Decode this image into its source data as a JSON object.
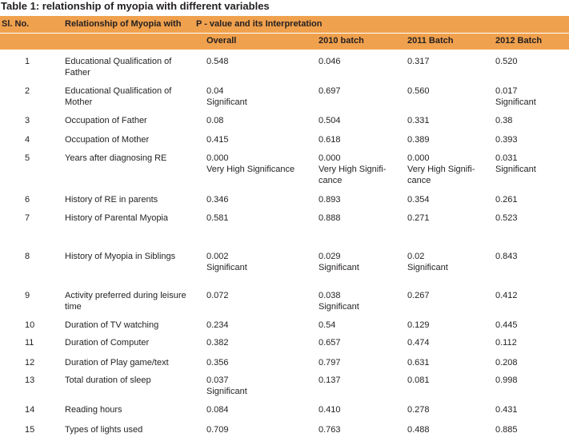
{
  "title": "Table 1: relationship of myopia with different variables",
  "headers": {
    "sl_no": "Sl. No.",
    "relationship": "Relationship of Myopia with",
    "p_value": "P - value and its Interpretation",
    "overall": "Overall",
    "b2010": "2010 batch",
    "b2011": "2011 Batch",
    "b2012": "2012 Batch"
  },
  "rows": [
    {
      "no": "1",
      "rel": "Educational Qualification of Father",
      "overall": "0.548",
      "b2010": "0.046",
      "b2011": "0.317",
      "b2012": "0.520"
    },
    {
      "no": "2",
      "rel": "Educational Qualification of Mother",
      "overall": "0.04 Significant",
      "b2010": "0.697",
      "b2011": "0.560",
      "b2012": "0.017 Significant"
    },
    {
      "no": "3",
      "rel": "Occupation of Father",
      "overall": "0.08",
      "b2010": "0.504",
      "b2011": "0.331",
      "b2012": "0.38"
    },
    {
      "no": "4",
      "rel": "Occupation of Mother",
      "overall": "0.415",
      "b2010": "0.618",
      "b2011": "0.389",
      "b2012": "0.393"
    },
    {
      "no": "5",
      "rel": "Years after diagnosing RE",
      "overall": "0.000 Very High Significance",
      "b2010": "0.000 Very High Signifi- cance",
      "b2011": "0.000 Very High Signifi- cance",
      "b2012": "0.031 Significant"
    },
    {
      "no": "6",
      "rel": "History of RE in parents",
      "overall": "0.346",
      "b2010": "0.893",
      "b2011": "0.354",
      "b2012": "0.261"
    },
    {
      "no": "7",
      "rel": "History of Parental Myopia",
      "overall": "0.581",
      "b2010": "0.888",
      "b2011": "0.271",
      "b2012": "0.523"
    },
    {
      "no": "8",
      "rel": "History of Myopia in Siblings",
      "overall": "0.002 Significant",
      "b2010": "0.029 Significant",
      "b2011": "0.02 Significant",
      "b2012": "0.843"
    },
    {
      "no": "9",
      "rel": "Activity preferred during leisure time",
      "overall": "0.072",
      "b2010": "0.038 Significant",
      "b2011": "0.267",
      "b2012": "0.412"
    },
    {
      "no": "10",
      "rel": "Duration of TV watching",
      "overall": "0.234",
      "b2010": "0.54",
      "b2011": "0.129",
      "b2012": "0.445"
    },
    {
      "no": "11",
      "rel": "Duration of Computer",
      "overall": "0.382",
      "b2010": "0.657",
      "b2011": "0.474",
      "b2012": "0.112"
    },
    {
      "no": "12",
      "rel": "Duration of Play game/text",
      "overall": "0.356",
      "b2010": "0.797",
      "b2011": "0.631",
      "b2012": "0.208"
    },
    {
      "no": "13",
      "rel": "Total duration of sleep",
      "overall": "0.037 Significant",
      "b2010": "0.137",
      "b2011": "0.081",
      "b2012": "0.998"
    },
    {
      "no": "14",
      "rel": "Reading hours",
      "overall": "0.084",
      "b2010": "0.410",
      "b2011": "0.278",
      "b2012": "0.431"
    },
    {
      "no": "15",
      "rel": "Types of lights used",
      "overall": "0.709",
      "b2010": "0.763",
      "b2011": "0.488",
      "b2012": "0.885"
    }
  ]
}
